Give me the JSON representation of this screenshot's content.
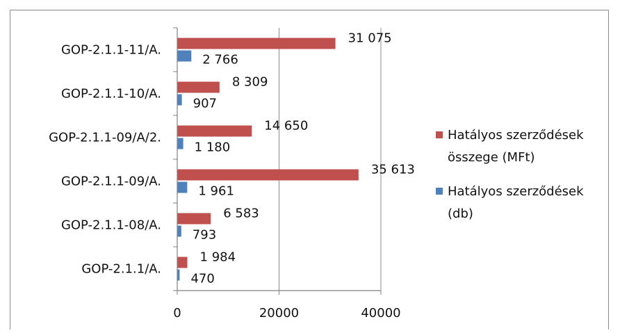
{
  "chart_data": {
    "type": "bar",
    "orientation": "horizontal",
    "categories": [
      "GOP-2.1.1-11/A.",
      "GOP-2.1.1-10/A.",
      "GOP-2.1.1-09/A/2.",
      "GOP-2.1.1-09/A.",
      "GOP-2.1.1-08/A.",
      "GOP-2.1.1/A."
    ],
    "series": [
      {
        "name": "Hatályos szerződések összege (MFt)",
        "legend_lines": [
          "Hatályos szerződések",
          "összege (MFt)"
        ],
        "color": "#C0504D",
        "values": [
          31075,
          8309,
          14650,
          35613,
          6583,
          1984
        ],
        "labels": [
          "31 075",
          "8 309",
          "14 650",
          "35 613",
          "6 583",
          "1 984"
        ]
      },
      {
        "name": "Hatályos szerződések (db)",
        "legend_lines": [
          "Hatályos szerződések",
          "(db)"
        ],
        "color": "#4F81BD",
        "values": [
          2766,
          907,
          1180,
          1961,
          793,
          470
        ],
        "labels": [
          "2 766",
          "907",
          "1 180",
          "1 961",
          "793",
          "470"
        ]
      }
    ],
    "xlim": [
      0,
      40000
    ],
    "xticks": [
      0,
      20000,
      40000
    ],
    "xtick_labels": [
      "0",
      "20000",
      "40000"
    ],
    "grid": "vertical",
    "legend_position": "right"
  }
}
